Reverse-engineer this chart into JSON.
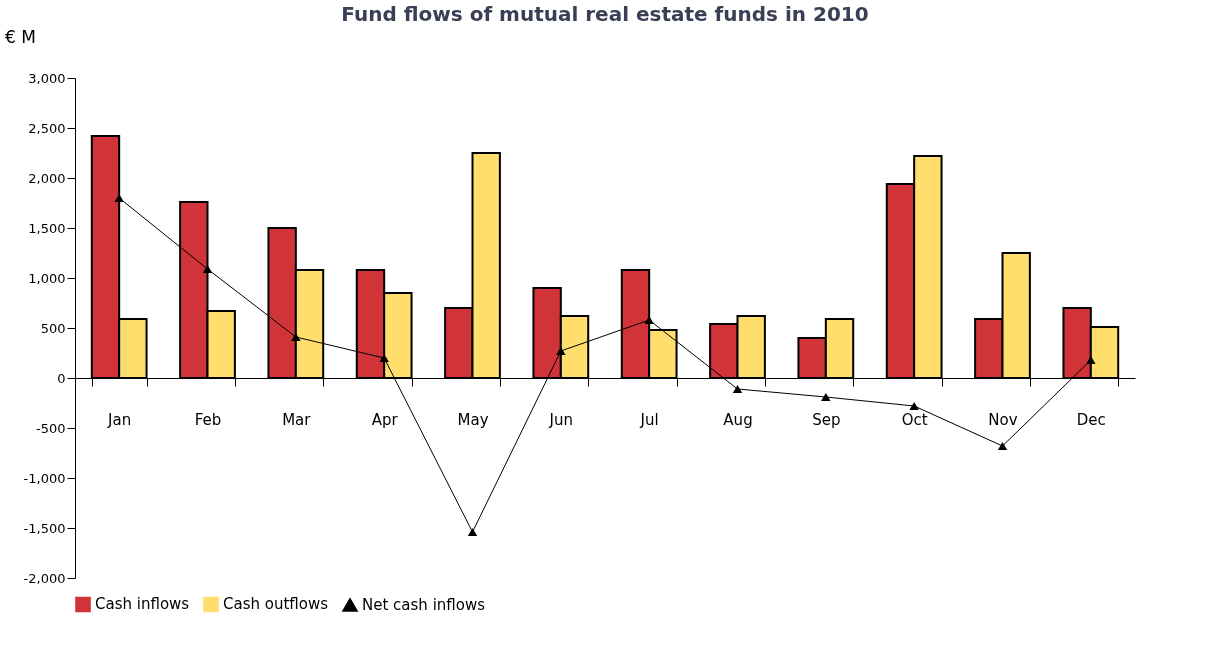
{
  "chart_data": {
    "type": "bar",
    "title": "Fund flows of mutual real estate funds in 2010",
    "ylabel": "€ M",
    "categories": [
      "Jan",
      "Feb",
      "Mar",
      "Apr",
      "May",
      "Jun",
      "Jul",
      "Aug",
      "Sep",
      "Oct",
      "Nov",
      "Dec"
    ],
    "series": [
      {
        "name": "Cash inflows",
        "color": "#d13438",
        "values": [
          2420,
          1760,
          1500,
          1080,
          700,
          900,
          1080,
          540,
          400,
          1940,
          590,
          700
        ]
      },
      {
        "name": "Cash outflows",
        "color": "#ffde6e",
        "values": [
          590,
          670,
          1080,
          850,
          2250,
          620,
          480,
          620,
          590,
          2220,
          1250,
          510
        ]
      },
      {
        "name": "Net cash inflows",
        "type": "line",
        "color": "#000000",
        "marker": "triangle",
        "values": [
          1800,
          1090,
          410,
          200,
          -1540,
          270,
          580,
          -110,
          -190,
          -280,
          -680,
          180
        ]
      }
    ],
    "ylim": [
      -2000,
      3000
    ],
    "yticks": [
      {
        "value": -2000,
        "label": "-2,000"
      },
      {
        "value": -1500,
        "label": "-1,500"
      },
      {
        "value": -1000,
        "label": "-1,000"
      },
      -500,
      0,
      500,
      {
        "value": 1000,
        "label": "1,000"
      },
      {
        "value": 1500,
        "label": "1,500"
      },
      {
        "value": 2000,
        "label": "2,000"
      },
      {
        "value": 2500,
        "label": "2,500"
      },
      {
        "value": 3000,
        "label": "3,000"
      }
    ],
    "legend": "bottom"
  }
}
